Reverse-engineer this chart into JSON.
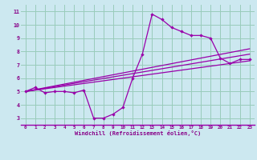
{
  "title": "",
  "xlabel": "Windchill (Refroidissement éolien,°C)",
  "background_color": "#cce8f0",
  "line_color": "#9900aa",
  "grid_color": "#99ccbb",
  "xlim": [
    -0.5,
    23.5
  ],
  "ylim": [
    2.5,
    11.5
  ],
  "xticks": [
    0,
    1,
    2,
    3,
    4,
    5,
    6,
    7,
    8,
    9,
    10,
    11,
    12,
    13,
    14,
    15,
    16,
    17,
    18,
    19,
    20,
    21,
    22,
    23
  ],
  "yticks": [
    3,
    4,
    5,
    6,
    7,
    8,
    9,
    10,
    11
  ],
  "series": [
    {
      "x": [
        0,
        1,
        2,
        3,
        4,
        5,
        6,
        7,
        8,
        9,
        10,
        11,
        12,
        13,
        14,
        15,
        16,
        17,
        18,
        19,
        20,
        21,
        22,
        23
      ],
      "y": [
        5.0,
        5.3,
        4.9,
        5.0,
        5.0,
        4.9,
        5.1,
        3.0,
        3.0,
        3.3,
        3.8,
        6.0,
        7.8,
        10.8,
        10.4,
        9.8,
        9.5,
        9.2,
        9.2,
        9.0,
        7.5,
        7.1,
        7.4,
        7.4
      ],
      "marker": true
    },
    {
      "x": [
        0,
        23
      ],
      "y": [
        5.0,
        8.2
      ],
      "marker": false
    },
    {
      "x": [
        0,
        23
      ],
      "y": [
        5.0,
        7.8
      ],
      "marker": false
    },
    {
      "x": [
        0,
        23
      ],
      "y": [
        5.0,
        7.3
      ],
      "marker": false
    }
  ]
}
